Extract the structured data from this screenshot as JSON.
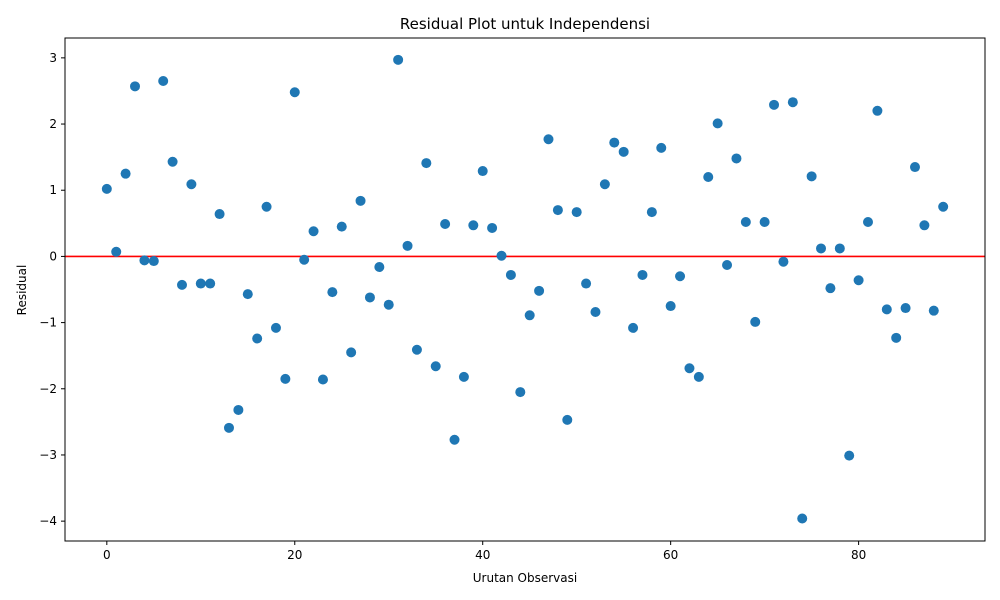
{
  "chart_data": {
    "type": "scatter",
    "title": "Residual Plot untuk Independensi",
    "xlabel": "Urutan Observasi",
    "ylabel": "Residual",
    "xlim": [
      -4.45,
      93.45
    ],
    "ylim": [
      -4.3,
      3.3
    ],
    "xticks": [
      0,
      20,
      40,
      60,
      80
    ],
    "yticks": [
      -4,
      -3,
      -2,
      -1,
      0,
      1,
      2,
      3
    ],
    "grid": false,
    "marker_color": "#1f77b4",
    "reference_line": {
      "y": 0,
      "color": "#ff0000"
    },
    "points": [
      [
        0,
        1.02
      ],
      [
        1,
        0.07
      ],
      [
        2,
        1.25
      ],
      [
        3,
        2.57
      ],
      [
        4,
        -0.06
      ],
      [
        5,
        -0.07
      ],
      [
        6,
        2.65
      ],
      [
        7,
        1.43
      ],
      [
        8,
        -0.43
      ],
      [
        9,
        1.09
      ],
      [
        10,
        -0.41
      ],
      [
        11,
        -0.41
      ],
      [
        12,
        0.64
      ],
      [
        13,
        -2.59
      ],
      [
        14,
        -2.32
      ],
      [
        15,
        -0.57
      ],
      [
        16,
        -1.24
      ],
      [
        17,
        0.75
      ],
      [
        18,
        -1.08
      ],
      [
        19,
        -1.85
      ],
      [
        20,
        2.48
      ],
      [
        21,
        -0.05
      ],
      [
        22,
        0.38
      ],
      [
        23,
        -1.86
      ],
      [
        24,
        -0.54
      ],
      [
        25,
        0.45
      ],
      [
        26,
        -1.45
      ],
      [
        27,
        0.84
      ],
      [
        28,
        -0.62
      ],
      [
        29,
        -0.16
      ],
      [
        30,
        -0.73
      ],
      [
        31,
        2.97
      ],
      [
        32,
        0.16
      ],
      [
        33,
        -1.41
      ],
      [
        34,
        1.41
      ],
      [
        35,
        -1.66
      ],
      [
        36,
        0.49
      ],
      [
        37,
        -2.77
      ],
      [
        38,
        -1.82
      ],
      [
        39,
        0.47
      ],
      [
        40,
        1.29
      ],
      [
        41,
        0.43
      ],
      [
        42,
        0.01
      ],
      [
        43,
        -0.28
      ],
      [
        44,
        -2.05
      ],
      [
        45,
        -0.89
      ],
      [
        46,
        -0.52
      ],
      [
        47,
        1.77
      ],
      [
        48,
        0.7
      ],
      [
        49,
        -2.47
      ],
      [
        50,
        0.67
      ],
      [
        51,
        -0.41
      ],
      [
        52,
        -0.84
      ],
      [
        53,
        1.09
      ],
      [
        54,
        1.72
      ],
      [
        55,
        1.58
      ],
      [
        56,
        -1.08
      ],
      [
        57,
        -0.28
      ],
      [
        58,
        0.67
      ],
      [
        59,
        1.64
      ],
      [
        60,
        -0.75
      ],
      [
        61,
        -0.3
      ],
      [
        62,
        -1.69
      ],
      [
        63,
        -1.82
      ],
      [
        64,
        1.2
      ],
      [
        65,
        2.01
      ],
      [
        66,
        -0.13
      ],
      [
        67,
        1.48
      ],
      [
        68,
        0.52
      ],
      [
        69,
        -0.99
      ],
      [
        70,
        0.52
      ],
      [
        71,
        2.29
      ],
      [
        72,
        -0.08
      ],
      [
        73,
        2.33
      ],
      [
        74,
        -3.96
      ],
      [
        75,
        1.21
      ],
      [
        76,
        0.12
      ],
      [
        77,
        -0.48
      ],
      [
        78,
        0.12
      ],
      [
        79,
        -3.01
      ],
      [
        80,
        -0.36
      ],
      [
        81,
        0.52
      ],
      [
        82,
        2.2
      ],
      [
        83,
        -0.8
      ],
      [
        84,
        -1.23
      ],
      [
        85,
        -0.78
      ],
      [
        86,
        1.35
      ],
      [
        87,
        0.47
      ],
      [
        88,
        -0.82
      ],
      [
        89,
        0.75
      ]
    ]
  }
}
